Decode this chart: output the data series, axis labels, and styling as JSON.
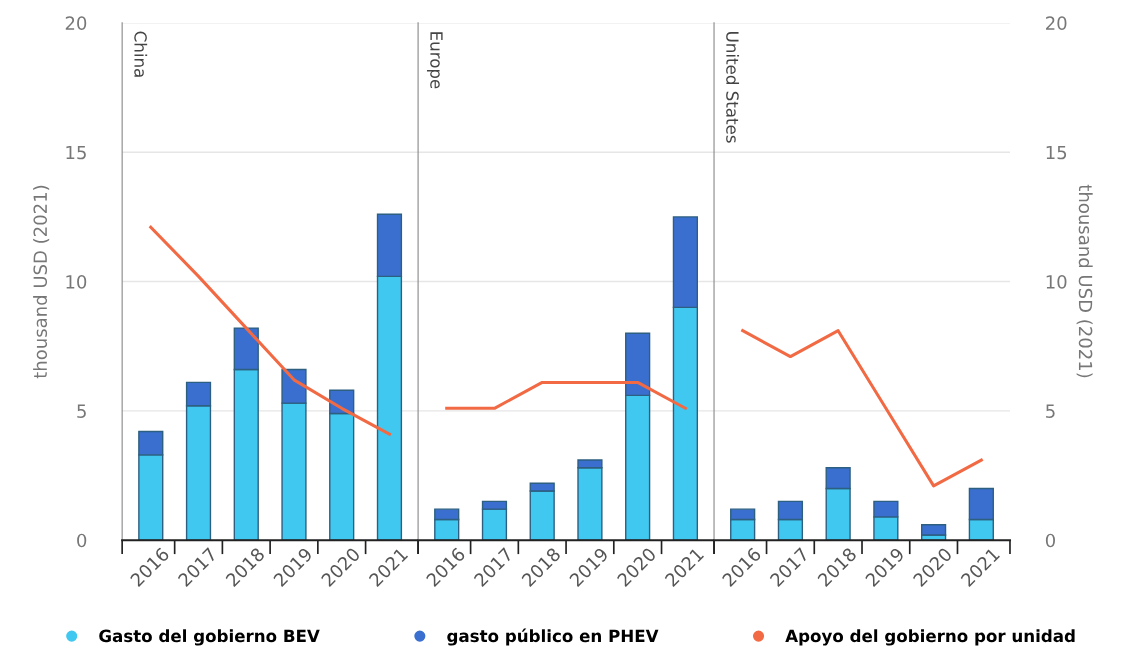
{
  "chart_data": [
    {
      "type": "bar",
      "stacked": true,
      "categories": [
        "2016",
        "2017",
        "2018",
        "2019",
        "2020",
        "2021"
      ],
      "ylabel": "thousand USD (2021)",
      "ylim": [
        0,
        20
      ],
      "yticks": [
        0,
        5,
        10,
        15,
        20
      ],
      "grid": "y",
      "legend": "bottom",
      "annotations": [
        "China"
      ],
      "series": [
        {
          "name": "Gasto del gobierno BEV",
          "color": "#41c8f0",
          "values": [
            3.3,
            5.2,
            6.6,
            5.3,
            4.9,
            10.2
          ]
        },
        {
          "name": "gasto público en PHEV",
          "color": "#3a6fd0",
          "values": [
            0.9,
            0.9,
            1.6,
            1.3,
            0.9,
            2.4
          ]
        },
        {
          "name": "Apoyo del gobierno por unidad",
          "type": "line",
          "color": "#f26a44",
          "marker": "none",
          "values": [
            12.1,
            10.2,
            8.2,
            6.2,
            5.1,
            4.1
          ]
        }
      ]
    },
    {
      "type": "bar",
      "stacked": true,
      "categories": [
        "2016",
        "2017",
        "2018",
        "2019",
        "2020",
        "2021"
      ],
      "ylim": [
        0,
        20
      ],
      "yticks": [
        0,
        5,
        10,
        15,
        20
      ],
      "grid": "y",
      "tick_labels": "x",
      "annotations": [
        "Europe"
      ],
      "series": [
        {
          "color": "#41c8f0",
          "values": [
            0.8,
            1.2,
            1.9,
            2.8,
            5.6,
            9.0
          ]
        },
        {
          "color": "#3a6fd0",
          "values": [
            0.4,
            0.3,
            0.3,
            0.3,
            2.4,
            3.5
          ]
        },
        {
          "type": "line",
          "color": "#f26a44",
          "marker": "none",
          "values": [
            5.1,
            5.1,
            6.1,
            6.1,
            6.1,
            5.1
          ]
        }
      ]
    },
    {
      "type": "bar",
      "stacked": true,
      "categories": [
        "2016",
        "2017",
        "2018",
        "2019",
        "2020",
        "2021"
      ],
      "y2lim": [
        0,
        20
      ],
      "y2ticks": [
        0,
        5,
        10,
        15,
        20
      ],
      "y2label": "thousand USD (2021)",
      "grid": "y",
      "annotations": [
        "United States"
      ],
      "series": [
        {
          "axis": "y2",
          "color": "#41c8f0",
          "values": [
            0.8,
            0.8,
            2.0,
            0.9,
            0.2,
            0.8
          ]
        },
        {
          "axis": "y2",
          "color": "#3a6fd0",
          "values": [
            0.4,
            0.7,
            0.8,
            0.6,
            0.4,
            1.2
          ]
        },
        {
          "type": "line",
          "axis": "y2",
          "color": "#f26a44",
          "marker": "none",
          "values": [
            8.1,
            7.1,
            8.1,
            5.1,
            2.1,
            3.1
          ]
        }
      ]
    }
  ]
}
